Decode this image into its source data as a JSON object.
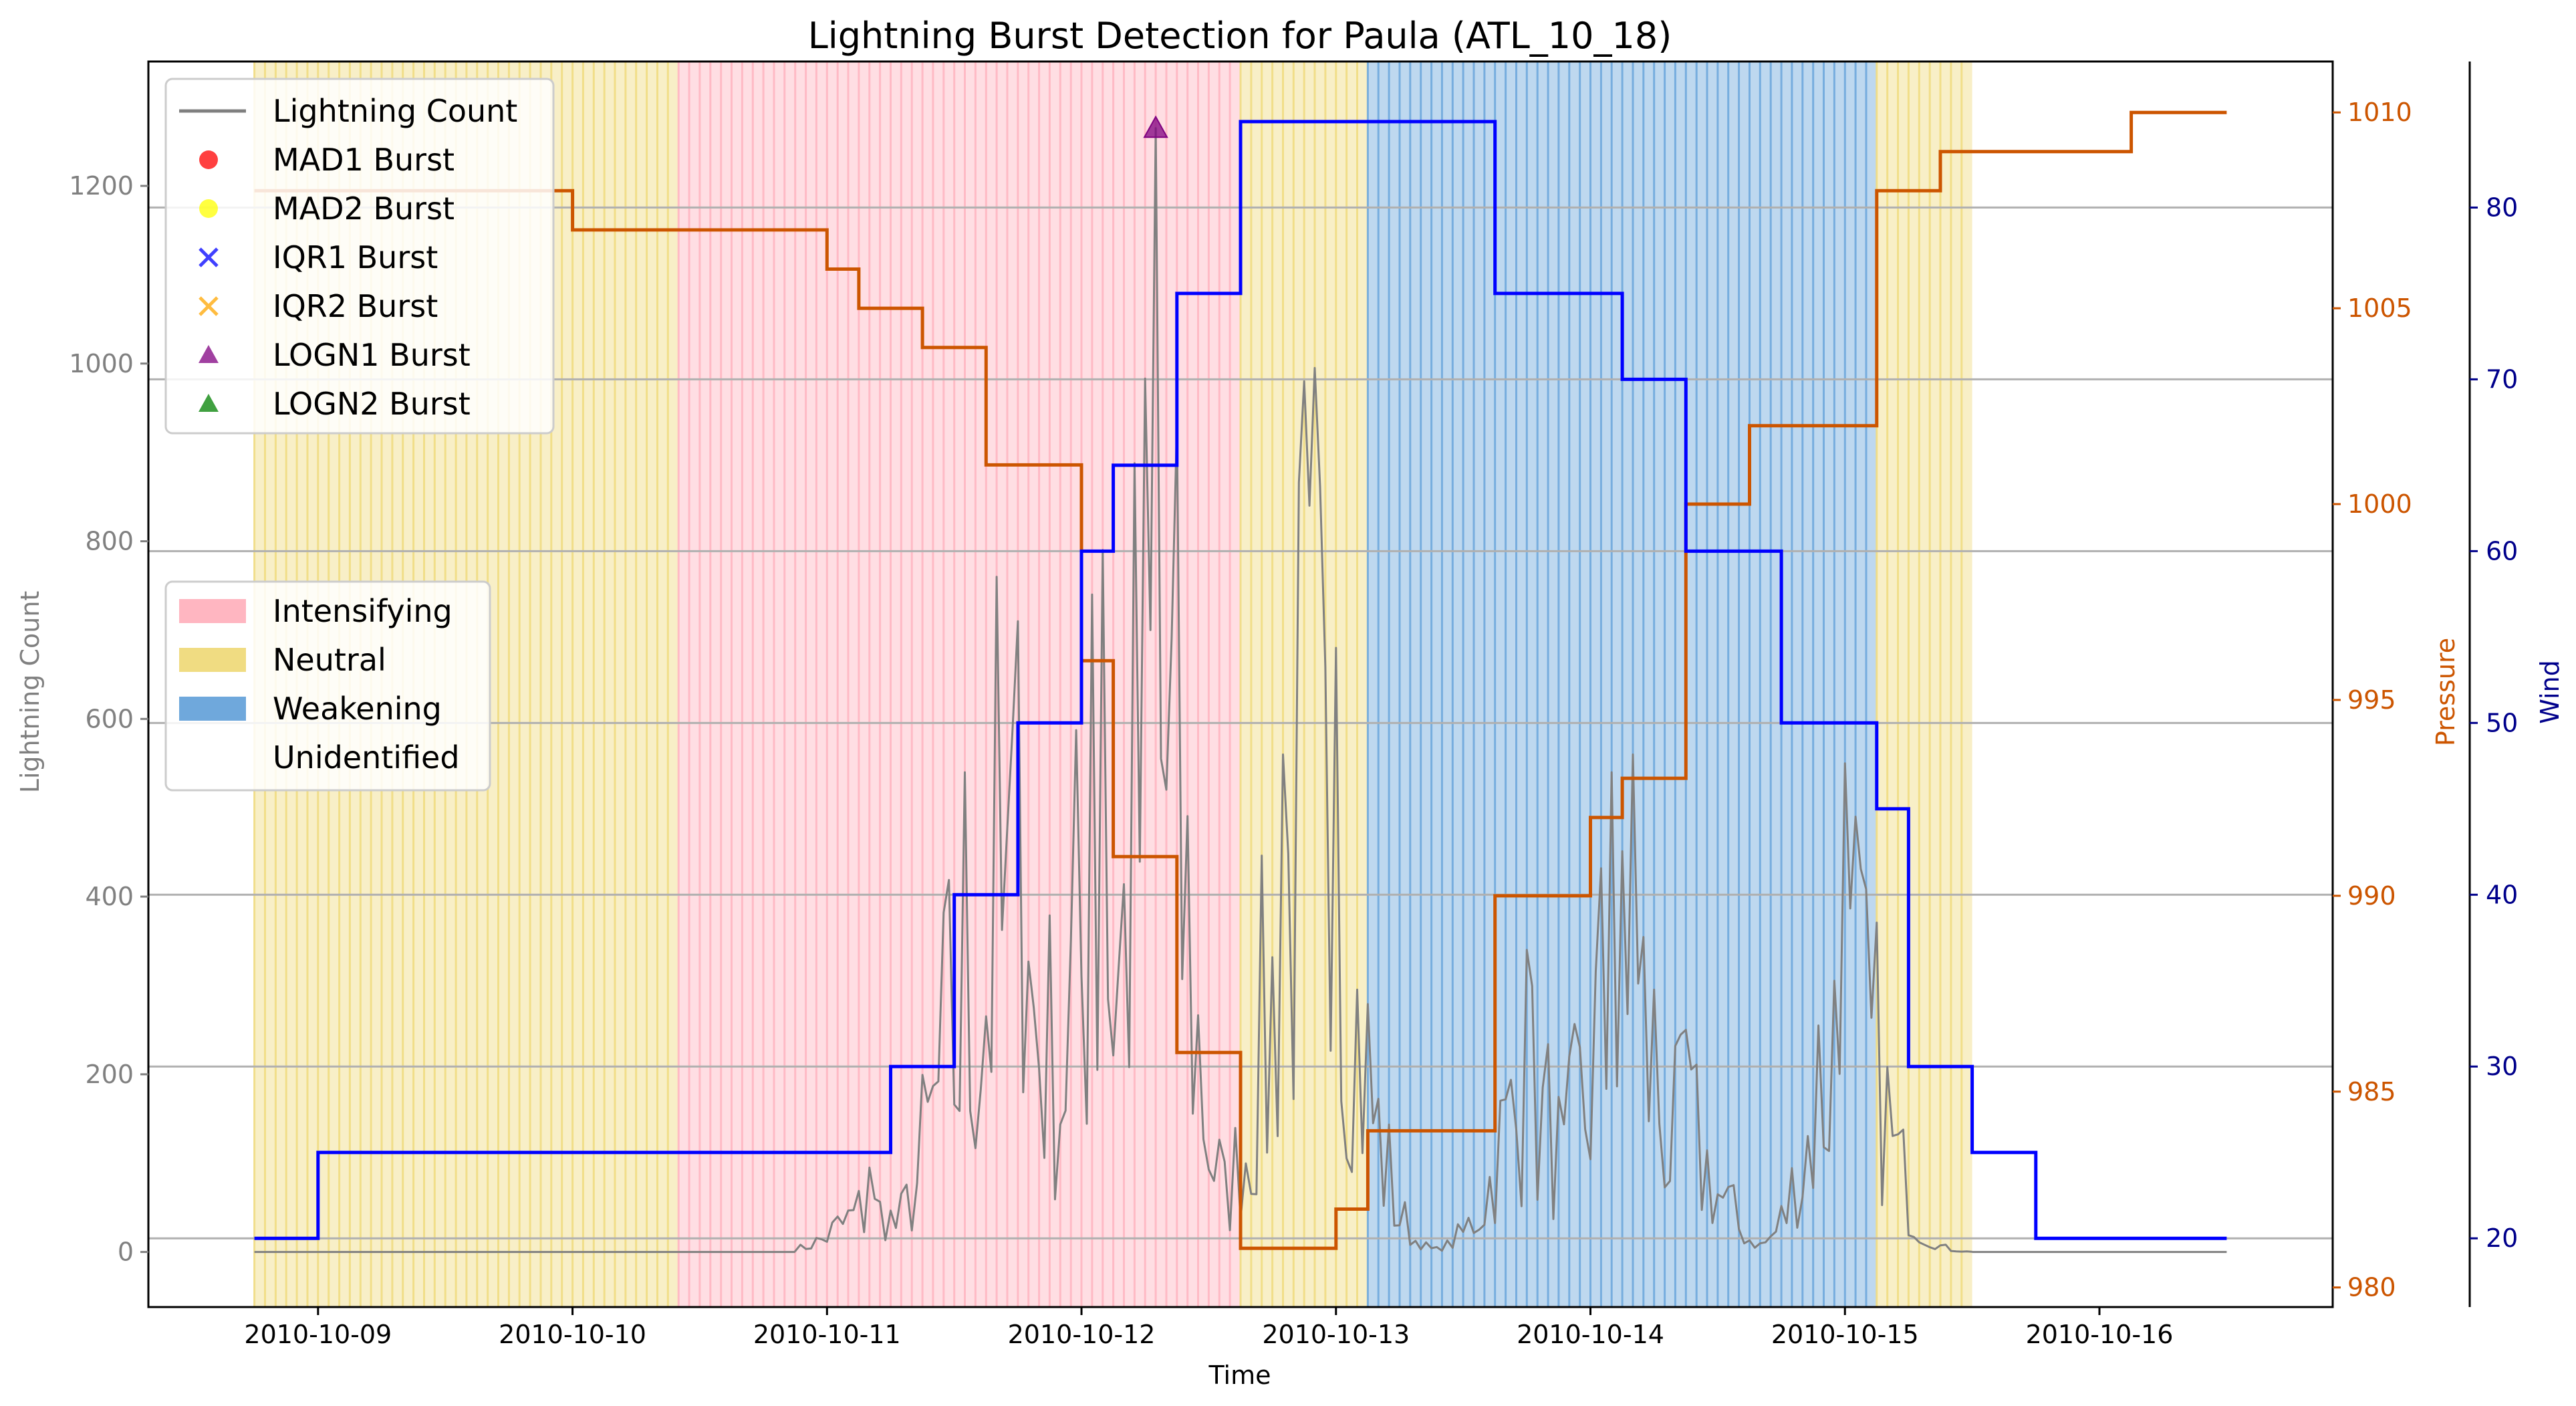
{
  "chart_data": {
    "type": "line",
    "title": "Lightning Burst Detection for Paula (ATL_10_18)",
    "xlabel": "Time",
    "ylabel_left": "Lightning Count",
    "ylabel_right_pressure": "Pressure",
    "ylabel_right_wind": "Wind",
    "x_range": [
      "2010-10-08T08:00",
      "2010-10-16T22:00"
    ],
    "x_ticks": [
      "2010-10-09",
      "2010-10-10",
      "2010-10-11",
      "2010-10-12",
      "2010-10-13",
      "2010-10-14",
      "2010-10-15",
      "2010-10-16"
    ],
    "ylim_left": [
      -62,
      1340
    ],
    "yticks_left": [
      0,
      200,
      400,
      600,
      800,
      1000,
      1200
    ],
    "ylim_pressure": [
      979.5,
      1011.3
    ],
    "yticks_pressure": [
      980,
      985,
      990,
      995,
      1000,
      1005,
      1010
    ],
    "ylim_wind": [
      16.0,
      88.5
    ],
    "yticks_wind": [
      20,
      30,
      40,
      50,
      60,
      70,
      80
    ],
    "grid": "horizontal at wind ticks",
    "phases": [
      {
        "phase": "Neutral",
        "start": "2010-10-08T18:00",
        "end": "2010-10-10T10:00"
      },
      {
        "phase": "Intensifying",
        "start": "2010-10-10T10:00",
        "end": "2010-10-12T15:00"
      },
      {
        "phase": "Neutral",
        "start": "2010-10-12T15:00",
        "end": "2010-10-13T03:00"
      },
      {
        "phase": "Weakening",
        "start": "2010-10-13T03:00",
        "end": "2010-10-15T03:00"
      },
      {
        "phase": "Neutral",
        "start": "2010-10-15T03:00",
        "end": "2010-10-15T12:00"
      }
    ],
    "series": [
      {
        "name": "Wind",
        "kind": "step",
        "points": [
          [
            "2010-10-08T18:00",
            20
          ],
          [
            "2010-10-09T00:00",
            25
          ],
          [
            "2010-10-11T06:00",
            30
          ],
          [
            "2010-10-11T12:00",
            40
          ],
          [
            "2010-10-11T18:00",
            50
          ],
          [
            "2010-10-12T00:00",
            60
          ],
          [
            "2010-10-12T03:00",
            65
          ],
          [
            "2010-10-12T09:00",
            75
          ],
          [
            "2010-10-12T15:00",
            85
          ],
          [
            "2010-10-13T15:00",
            75
          ],
          [
            "2010-10-14T03:00",
            70
          ],
          [
            "2010-10-14T09:00",
            60
          ],
          [
            "2010-10-14T18:00",
            50
          ],
          [
            "2010-10-15T03:00",
            45
          ],
          [
            "2010-10-15T06:00",
            30
          ],
          [
            "2010-10-15T12:00",
            25
          ],
          [
            "2010-10-15T18:00",
            20
          ],
          [
            "2010-10-16T12:00",
            20
          ]
        ]
      },
      {
        "name": "Pressure",
        "kind": "step",
        "points": [
          [
            "2010-10-08T18:00",
            1008
          ],
          [
            "2010-10-10T00:00",
            1007
          ],
          [
            "2010-10-11T00:00",
            1006
          ],
          [
            "2010-10-11T03:00",
            1005
          ],
          [
            "2010-10-11T09:00",
            1004
          ],
          [
            "2010-10-11T15:00",
            1001
          ],
          [
            "2010-10-12T00:00",
            996
          ],
          [
            "2010-10-12T03:00",
            991
          ],
          [
            "2010-10-12T09:00",
            986
          ],
          [
            "2010-10-12T15:00",
            981
          ],
          [
            "2010-10-13T00:00",
            982
          ],
          [
            "2010-10-13T03:00",
            984
          ],
          [
            "2010-10-13T15:00",
            990
          ],
          [
            "2010-10-14T00:00",
            992
          ],
          [
            "2010-10-14T03:00",
            993
          ],
          [
            "2010-10-14T09:00",
            1000
          ],
          [
            "2010-10-14T15:00",
            1002
          ],
          [
            "2010-10-15T03:00",
            1008
          ],
          [
            "2010-10-15T09:00",
            1009
          ],
          [
            "2010-10-16T03:00",
            1010
          ],
          [
            "2010-10-16T12:00",
            1010
          ]
        ]
      },
      {
        "name": "Lightning Count",
        "kind": "bursty",
        "baseline_segments": [
          [
            "2010-10-08T18:00",
            "2010-10-10T21:00"
          ],
          [
            "2010-10-15T12:00",
            "2010-10-16T12:00"
          ]
        ],
        "active_range": [
          "2010-10-10T21:00",
          "2010-10-15T12:00"
        ],
        "peaks": [
          [
            "2010-10-11T04:00",
            95
          ],
          [
            "2010-10-11T13:00",
            540
          ],
          [
            "2010-10-11T16:00",
            760
          ],
          [
            "2010-10-11T18:00",
            710
          ],
          [
            "2010-10-12T01:00",
            740
          ],
          [
            "2010-10-12T02:00",
            790
          ],
          [
            "2010-10-12T07:00",
            1265
          ],
          [
            "2010-10-12T19:00",
            560
          ],
          [
            "2010-10-12T21:00",
            980
          ],
          [
            "2010-10-12T22:00",
            995
          ],
          [
            "2010-10-13T00:00",
            680
          ],
          [
            "2010-10-13T18:00",
            340
          ],
          [
            "2010-10-14T02:00",
            540
          ],
          [
            "2010-10-14T04:00",
            560
          ],
          [
            "2010-10-14T09:00",
            250
          ],
          [
            "2010-10-15T00:00",
            550
          ],
          [
            "2010-10-15T01:00",
            490
          ]
        ]
      }
    ],
    "bursts": [
      {
        "method": "LOGN1 Burst",
        "x": "2010-10-12T07:00",
        "y": 1265
      }
    ]
  },
  "legend_series": [
    {
      "label": "Lightning Count",
      "marker": "line",
      "color": "#7f7f7f"
    },
    {
      "label": "MAD1 Burst",
      "marker": "circle",
      "color": "#ff0000"
    },
    {
      "label": "MAD2 Burst",
      "marker": "circle",
      "color": "#ffff00"
    },
    {
      "label": "IQR1 Burst",
      "marker": "x",
      "color": "#0000ff"
    },
    {
      "label": "IQR2 Burst",
      "marker": "x",
      "color": "#ffa500"
    },
    {
      "label": "LOGN1 Burst",
      "marker": "triangle",
      "color": "#800080"
    },
    {
      "label": "LOGN2 Burst",
      "marker": "triangle",
      "color": "#008000"
    }
  ],
  "legend_phases": [
    {
      "label": "Intensifying",
      "color": "#ffb6c1"
    },
    {
      "label": "Neutral",
      "color": "#f0dc82"
    },
    {
      "label": "Weakening",
      "color": "#6fa8dc"
    },
    {
      "label": "Unidentified",
      "color": "#ffffff"
    }
  ],
  "colors": {
    "lightning": "#808080",
    "wind": "#0000ff",
    "pressure": "#cc5500",
    "pressure_axis": "#cc5500",
    "wind_axis": "#00008b",
    "left_axis": "#808080",
    "grid": "#b0b0b0",
    "Intensifying": "#ffb6c1",
    "Neutral": "#f0dc82",
    "Weakening": "#6fa8dc"
  }
}
